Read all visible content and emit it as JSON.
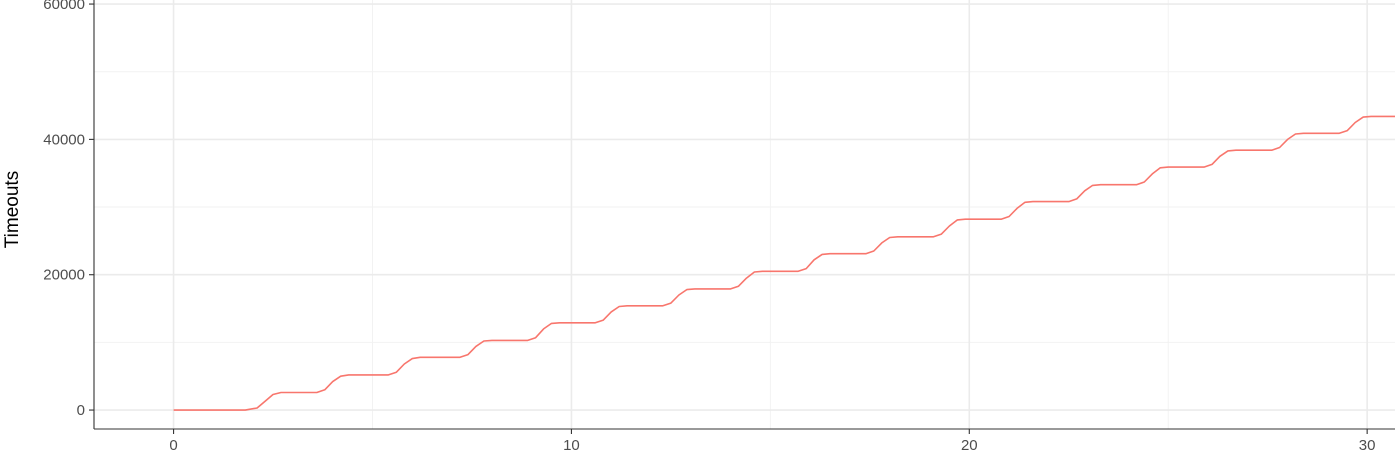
{
  "chart_data": {
    "type": "line",
    "title": "",
    "xlabel": "",
    "ylabel": "Timeouts",
    "xlim": [
      -2,
      30.7
    ],
    "ylim": [
      -2800,
      60600
    ],
    "x_ticks": [
      0,
      10,
      20,
      30
    ],
    "x_tick_labels": [
      "0",
      "10",
      "20",
      "30"
    ],
    "y_ticks": [
      0,
      20000,
      40000,
      60000
    ],
    "y_tick_labels": [
      "0",
      "20000",
      "40000",
      "60000"
    ],
    "x_minor_gridlines": [
      5,
      15,
      25
    ],
    "y_minor_gridlines": [
      10000,
      30000,
      50000
    ],
    "grid": true,
    "legend": "none",
    "series": [
      {
        "color": "#F8766D",
        "x": [
          0.0,
          1.8,
          2.1,
          2.3,
          2.5,
          2.7,
          3.6,
          3.8,
          4.0,
          4.2,
          4.4,
          5.4,
          5.6,
          5.8,
          6.0,
          6.2,
          7.2,
          7.4,
          7.6,
          7.8,
          8.0,
          8.9,
          9.1,
          9.3,
          9.5,
          9.7,
          10.6,
          10.8,
          11.0,
          11.2,
          11.4,
          12.3,
          12.5,
          12.7,
          12.9,
          13.1,
          14.0,
          14.2,
          14.4,
          14.6,
          14.8,
          15.7,
          15.9,
          16.1,
          16.3,
          16.5,
          17.4,
          17.6,
          17.8,
          18.0,
          18.2,
          19.1,
          19.3,
          19.5,
          19.7,
          19.9,
          20.8,
          21.0,
          21.2,
          21.4,
          21.6,
          22.5,
          22.7,
          22.9,
          23.1,
          23.3,
          24.2,
          24.4,
          24.6,
          24.8,
          25.0,
          25.9,
          26.1,
          26.3,
          26.5,
          26.7,
          27.6,
          27.8,
          28.0,
          28.2,
          28.4,
          29.3,
          29.5,
          29.7,
          29.9,
          30.1,
          30.7
        ],
        "y": [
          0,
          0,
          300,
          1300,
          2300,
          2600,
          2600,
          3000,
          4200,
          5000,
          5200,
          5200,
          5600,
          6800,
          7600,
          7800,
          7800,
          8200,
          9400,
          10200,
          10300,
          10300,
          10700,
          12000,
          12800,
          12900,
          12900,
          13300,
          14500,
          15300,
          15400,
          15400,
          15800,
          17000,
          17800,
          17900,
          17900,
          18300,
          19500,
          20400,
          20500,
          20500,
          20900,
          22200,
          23000,
          23100,
          23100,
          23500,
          24700,
          25500,
          25600,
          25600,
          26000,
          27200,
          28100,
          28200,
          28200,
          28600,
          29800,
          30700,
          30800,
          30800,
          31200,
          32400,
          33200,
          33300,
          33300,
          33700,
          34900,
          35800,
          35900,
          35900,
          36300,
          37500,
          38300,
          38400,
          38400,
          38800,
          40000,
          40800,
          40900,
          40900,
          41300,
          42500,
          43300,
          43400,
          43400
        ]
      }
    ]
  }
}
